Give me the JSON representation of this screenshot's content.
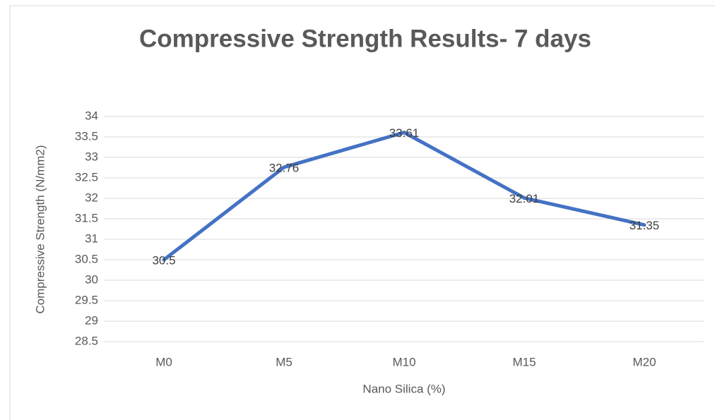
{
  "chart_data": {
    "type": "line",
    "title": "Compressive Strength Results- 7 days",
    "x_label": "Nano Silica (%)",
    "y_label": "Compressive Strength (N/mm2)",
    "categories": [
      "M0",
      "M5",
      "M10",
      "M15",
      "M20"
    ],
    "series": [
      {
        "name": "Compressive Strength",
        "color": "#4472c4",
        "values": [
          30.5,
          32.76,
          33.61,
          32.01,
          31.35
        ]
      }
    ],
    "ylim": [
      28.5,
      34
    ],
    "yticks": [
      28.5,
      29,
      29.5,
      30,
      30.5,
      31,
      31.5,
      32,
      32.5,
      33,
      33.5,
      34
    ],
    "grid": true
  }
}
